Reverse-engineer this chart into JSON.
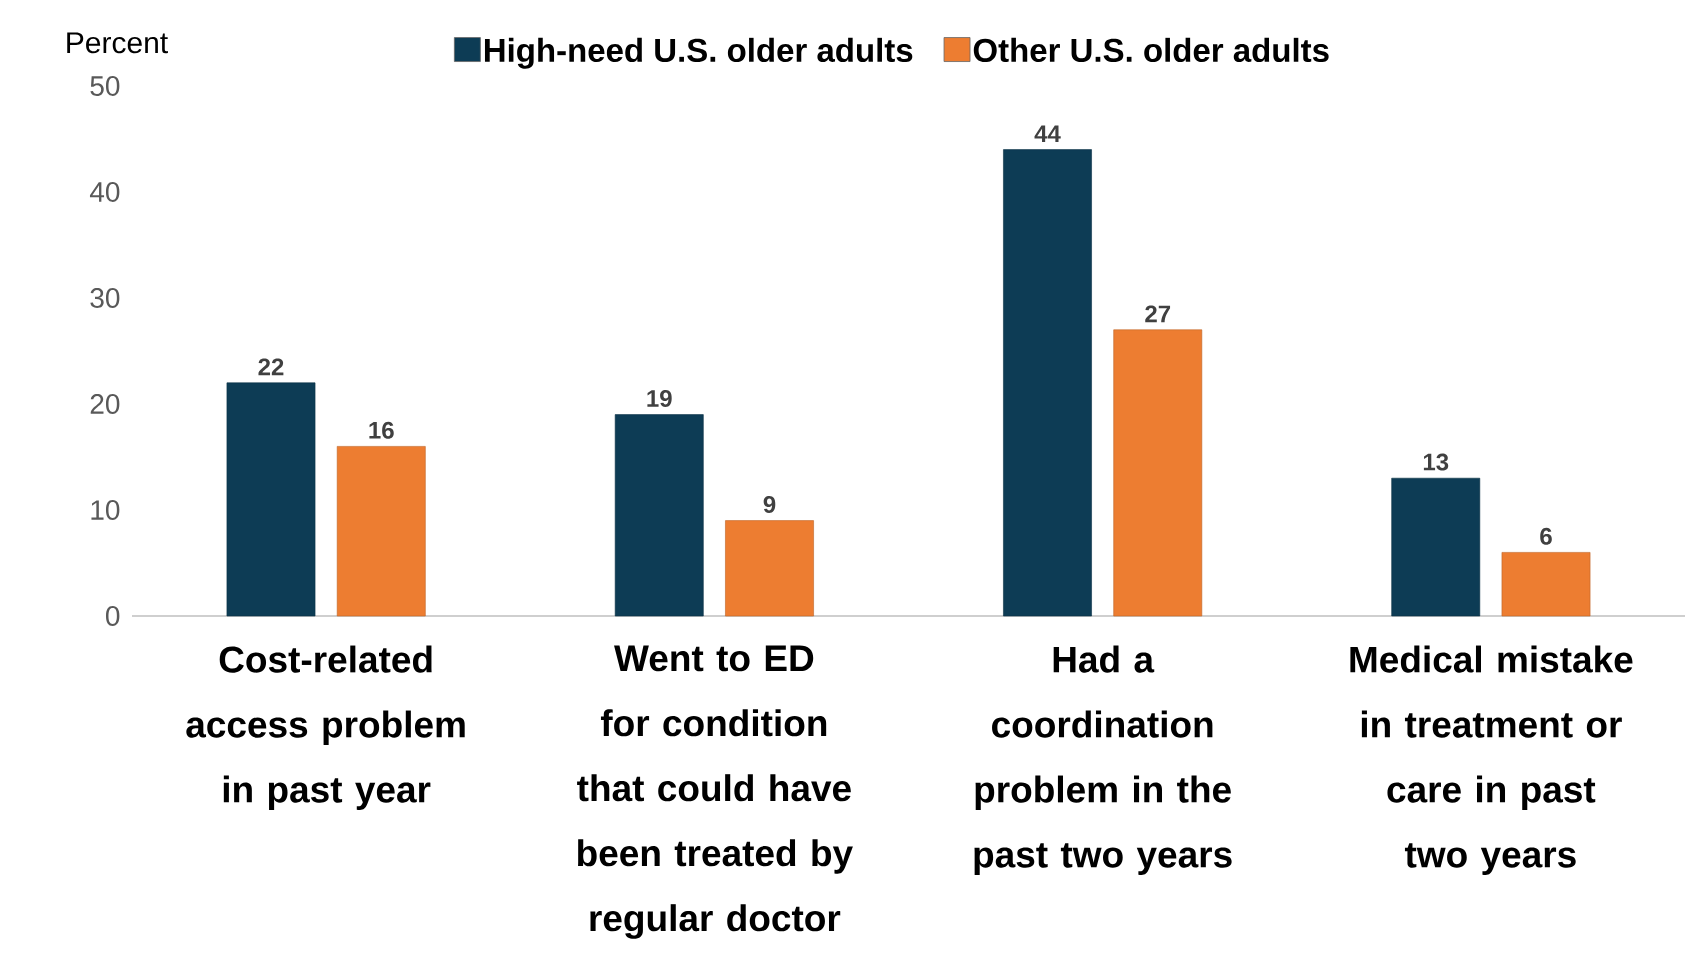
{
  "chart_data": {
    "type": "bar",
    "ylabel": "Percent",
    "categories": [
      "Cost-related access problem in past year",
      "Went to ED for condition that could have been treated by regular doctor",
      "Had a coordination problem in the past two years",
      "Medical mistake in treatment or care in past two years"
    ],
    "series": [
      {
        "name": "High-need U.S. older adults",
        "color": "#0d3c55",
        "values": [
          22,
          19,
          44,
          13
        ]
      },
      {
        "name": "Other U.S. older adults",
        "color": "#ed7d31",
        "values": [
          16,
          9,
          27,
          6
        ]
      }
    ],
    "ylim": [
      0,
      50
    ],
    "yticks": [
      0,
      10,
      20,
      30,
      40,
      50
    ],
    "legend": "top",
    "data_labels": true
  }
}
